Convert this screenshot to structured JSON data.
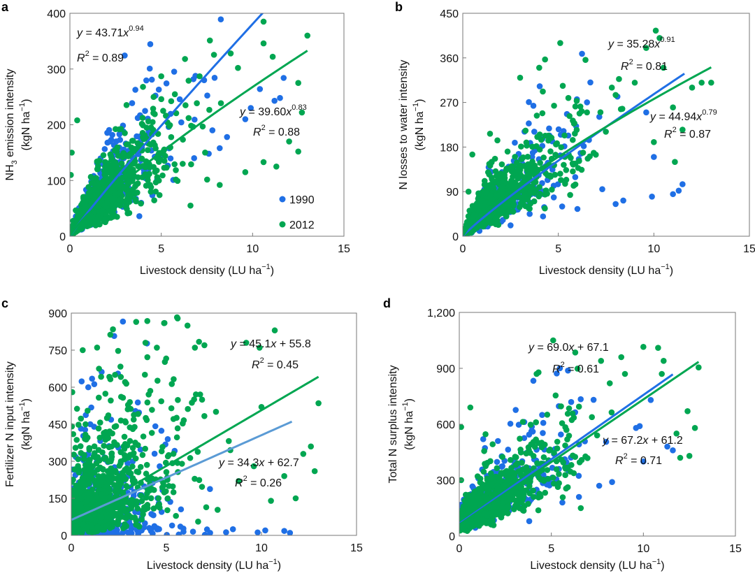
{
  "colors": {
    "1990": "#1f6fe5",
    "2012": "#00a651",
    "fit_c_1990": "#5b9bd5"
  },
  "legend": {
    "items": [
      {
        "label": "1990",
        "color": "#1f6fe5"
      },
      {
        "label": "2012",
        "color": "#00a651"
      }
    ],
    "placement": "bottom-right of panel a"
  },
  "chart_data": [
    {
      "panel": "a",
      "type": "scatter",
      "xlabel": {
        "main": "Livestock density (LU ha",
        "sup": "−1",
        "end": ")"
      },
      "ylabel": {
        "line1_pre": "NH",
        "line1_sub": "3",
        "line1_post": " emission intensity",
        "line2_main": "(kgN ha",
        "line2_sup": "−1",
        "line2_end": ")"
      },
      "xlim": [
        0,
        15
      ],
      "ylim": [
        0,
        400
      ],
      "xticks": [
        "0",
        "5",
        "10",
        "15"
      ],
      "yticks": [
        "0",
        "100",
        "200",
        "300",
        "400"
      ],
      "fits": [
        {
          "series": "1990",
          "form": "power",
          "a": 43.71,
          "b": 0.94,
          "xmax": 11.6,
          "eq": " = 43.71",
          "exp": "0.94",
          "r2": " = 0.89"
        },
        {
          "series": "2012",
          "form": "power",
          "a": 39.6,
          "b": 0.83,
          "xmax": 13.0,
          "eq": " = 39.60",
          "exp": "0.83",
          "r2": " = 0.88"
        }
      ],
      "series": [
        {
          "name": "1990",
          "points": [
            [
              11.7,
              284
            ],
            [
              11.5,
              248
            ],
            [
              10.4,
              264
            ],
            [
              9.9,
              230
            ],
            [
              9.6,
              210
            ],
            [
              11.2,
              243
            ],
            [
              7.8,
              190
            ],
            [
              8.2,
              158
            ],
            [
              8.6,
              178
            ],
            [
              3.8,
              36
            ],
            [
              3.9,
              60
            ],
            [
              2.2,
              170
            ],
            [
              7.6,
              148
            ],
            [
              6.8,
              140
            ]
          ]
        },
        {
          "name": "2012",
          "points": [
            [
              13.0,
              360
            ],
            [
              10.6,
              385
            ],
            [
              10.6,
              346
            ],
            [
              11.1,
              322
            ],
            [
              12.5,
              275
            ],
            [
              12.7,
              222
            ],
            [
              12.5,
              152
            ],
            [
              11.3,
              125
            ],
            [
              10.6,
              133
            ],
            [
              9.6,
              115
            ],
            [
              8.8,
              328
            ],
            [
              9.2,
              302
            ],
            [
              6.3,
              318
            ],
            [
              0.4,
              208
            ],
            [
              0.1,
              150
            ],
            [
              6.6,
              55
            ],
            [
              0.05,
              110
            ],
            [
              5.0,
              287
            ],
            [
              7.1,
              287
            ],
            [
              4.0,
              268
            ],
            [
              12.0,
              170
            ],
            [
              8.2,
              92
            ]
          ]
        }
      ]
    },
    {
      "panel": "b",
      "type": "scatter",
      "xlabel": {
        "main": "Livestock density (LU ha",
        "sup": "−1",
        "end": ")"
      },
      "ylabel": {
        "line1_pre": "N losses to water intensity",
        "line1_sub": "",
        "line1_post": "",
        "line2_main": "(kgN ha",
        "line2_sup": "−1",
        "line2_end": ")"
      },
      "xlim": [
        0,
        15
      ],
      "ylim": [
        0,
        450
      ],
      "xticks": [
        "0",
        "5",
        "10",
        "15"
      ],
      "yticks": [
        "0",
        "90",
        "180",
        "270",
        "360",
        "450"
      ],
      "fits": [
        {
          "series": "1990",
          "form": "power",
          "a": 35.28,
          "b": 0.91,
          "xmax": 11.6,
          "eq": " = 35.28",
          "exp": "0.91",
          "r2": " = 0.81"
        },
        {
          "series": "2012",
          "form": "power",
          "a": 44.94,
          "b": 0.79,
          "xmax": 13.0,
          "eq": " = 44.94",
          "exp": "0.79",
          "r2": " = 0.87"
        }
      ],
      "series": [
        {
          "name": "1990",
          "points": [
            [
              11.5,
              105
            ],
            [
              11.3,
              92
            ],
            [
              11.0,
              85
            ],
            [
              9.9,
              80
            ],
            [
              8.4,
              72
            ],
            [
              8.0,
              65
            ],
            [
              6.0,
              55
            ],
            [
              5.2,
              60
            ],
            [
              3.5,
              45
            ],
            [
              2.5,
              22
            ],
            [
              10.0,
              160
            ],
            [
              9.6,
              250
            ],
            [
              7.3,
              95
            ],
            [
              4.2,
              40
            ]
          ]
        },
        {
          "name": "2012",
          "points": [
            [
              10.1,
              415
            ],
            [
              10.3,
              400
            ],
            [
              5.1,
              390
            ],
            [
              4.0,
              340
            ],
            [
              12.5,
              310
            ],
            [
              12.0,
              300
            ],
            [
              9.6,
              380
            ],
            [
              10.5,
              340
            ],
            [
              11.5,
              215
            ],
            [
              10.0,
              190
            ],
            [
              11.1,
              150
            ],
            [
              8.0,
              285
            ],
            [
              0.5,
              165
            ],
            [
              0.3,
              90
            ],
            [
              3.0,
              320
            ],
            [
              7.8,
              300
            ],
            [
              6.5,
              250
            ],
            [
              9.0,
              310
            ],
            [
              13.0,
              310
            ],
            [
              11.0,
              260
            ]
          ]
        }
      ]
    },
    {
      "panel": "c",
      "type": "scatter",
      "xlabel": {
        "main": "Livestock density (LU ha",
        "sup": "−1",
        "end": ")"
      },
      "ylabel": {
        "line1_pre": "Fertilizer N input intensity",
        "line1_sub": "",
        "line1_post": "",
        "line2_main": "(kgN ha",
        "line2_sup": "−1",
        "line2_end": ")"
      },
      "xlim": [
        0,
        15
      ],
      "ylim": [
        0,
        900
      ],
      "xticks": [
        "0",
        "5",
        "10",
        "15"
      ],
      "yticks": [
        "0",
        "150",
        "300",
        "450",
        "600",
        "750",
        "900"
      ],
      "fits": [
        {
          "series": "2012",
          "form": "linear",
          "a": 45.1,
          "b": 55.8,
          "xmax": 13.0,
          "eq": " = 45.1",
          "exp": "",
          "tail": " + 55.8",
          "r2": " = 0.45"
        },
        {
          "series": "1990",
          "form": "linear",
          "a": 34.3,
          "b": 62.7,
          "xmax": 11.6,
          "eq": " = 34.3",
          "exp": "",
          "tail": " + 62.7",
          "r2": " = 0.26"
        }
      ],
      "series": [
        {
          "name": "1990",
          "points": [
            [
              11.5,
              10
            ],
            [
              11.2,
              18
            ],
            [
              10.2,
              20
            ],
            [
              9.8,
              12
            ],
            [
              8.5,
              25
            ],
            [
              7.3,
              10
            ],
            [
              6.4,
              15
            ],
            [
              5.9,
              15
            ],
            [
              5.3,
              40
            ],
            [
              4.1,
              30
            ],
            [
              3.7,
              20
            ],
            [
              2.2,
              10
            ],
            [
              1.0,
              450
            ],
            [
              1.2,
              440
            ],
            [
              0.9,
              330
            ]
          ]
        },
        {
          "name": "2012",
          "points": [
            [
              4.9,
              860
            ],
            [
              10.7,
              830
            ],
            [
              9.2,
              780
            ],
            [
              9.9,
              760
            ],
            [
              0.6,
              750
            ],
            [
              3.9,
              780
            ],
            [
              4.5,
              760
            ],
            [
              7.0,
              770
            ],
            [
              6.5,
              760
            ],
            [
              13.0,
              535
            ],
            [
              12.6,
              360
            ],
            [
              12.2,
              330
            ],
            [
              11.2,
              240
            ],
            [
              11.8,
              150
            ],
            [
              10.5,
              140
            ],
            [
              8.8,
              220
            ],
            [
              9.6,
              280
            ],
            [
              0.05,
              580
            ],
            [
              0.1,
              410
            ],
            [
              2.3,
              650
            ],
            [
              10.0,
              520
            ],
            [
              12.8,
              260
            ]
          ]
        }
      ]
    },
    {
      "panel": "d",
      "type": "scatter",
      "xlabel": {
        "main": "Livestock density (LU ha",
        "sup": "−1",
        "end": ")"
      },
      "ylabel": {
        "line1_pre": "Total N surplus intensity",
        "line1_sub": "",
        "line1_post": "",
        "line2_main": "(kgN ha",
        "line2_sup": "−1",
        "line2_end": ")"
      },
      "xlim": [
        0,
        15
      ],
      "ylim": [
        0,
        1200
      ],
      "xticks": [
        "0",
        "5",
        "10",
        "15"
      ],
      "yticks": [
        "0",
        "300",
        "600",
        "900",
        "1,200"
      ],
      "fits": [
        {
          "series": "1990",
          "form": "linear",
          "a": 69.0,
          "b": 67.1,
          "xmax": 11.6,
          "eq": " = 69.0",
          "exp": "",
          "tail": " + 67.1",
          "r2": " = 0.61"
        },
        {
          "series": "2012",
          "form": "linear",
          "a": 67.2,
          "b": 61.2,
          "xmax": 13.0,
          "eq": " = 67.2",
          "exp": "",
          "tail": " + 61.2",
          "r2": " = 0.71"
        }
      ],
      "series": [
        {
          "name": "1990",
          "points": [
            [
              11.6,
              460
            ],
            [
              11.3,
              480
            ],
            [
              10.4,
              730
            ],
            [
              9.8,
              590
            ],
            [
              9.6,
              580
            ],
            [
              8.3,
              290
            ],
            [
              7.6,
              270
            ],
            [
              6.5,
              210
            ],
            [
              5.6,
              180
            ],
            [
              3.8,
              80
            ],
            [
              4.5,
              650
            ],
            [
              1.3,
              520
            ],
            [
              2.1,
              510
            ],
            [
              10.0,
              400
            ]
          ]
        },
        {
          "name": "2012",
          "points": [
            [
              5.1,
              1050
            ],
            [
              10.0,
              1015
            ],
            [
              10.8,
              1010
            ],
            [
              6.3,
              985
            ],
            [
              8.8,
              960
            ],
            [
              11.1,
              940
            ],
            [
              7.7,
              940
            ],
            [
              13.0,
              905
            ],
            [
              12.4,
              670
            ],
            [
              12.8,
              580
            ],
            [
              12.5,
              430
            ],
            [
              12.0,
              420
            ],
            [
              6.6,
              150
            ],
            [
              0.1,
              585
            ],
            [
              0.1,
              300
            ],
            [
              0.6,
              690
            ],
            [
              4.2,
              870
            ],
            [
              9.0,
              870
            ],
            [
              11.0,
              870
            ],
            [
              11.8,
              550
            ]
          ]
        }
      ]
    }
  ],
  "panel_letters": [
    "a",
    "b",
    "c",
    "d"
  ]
}
